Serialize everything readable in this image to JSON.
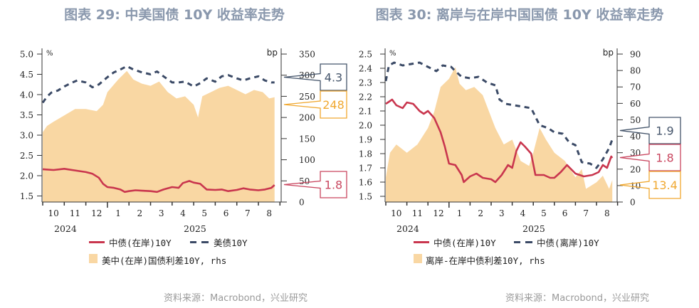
{
  "chart_data": [
    {
      "type": "line",
      "title": "图表 29: 中美国债 10Y 收益率走势",
      "left_unit": "%",
      "right_unit": "bp",
      "left_ticks": [
        "5.0",
        "4.5",
        "4.0",
        "3.5",
        "3.0",
        "2.5",
        "2.0",
        "1.5"
      ],
      "right_ticks": [
        "350",
        "300",
        "250",
        "200",
        "150",
        "100",
        "50",
        "0"
      ],
      "ylim_left": [
        1.35,
        5.0
      ],
      "ylim_right": [
        0,
        350
      ],
      "x_unit": "months since 2024-10-01",
      "xlim": [
        0,
        11
      ],
      "month_labels": [
        "10",
        "11",
        "12",
        "1",
        "2",
        "3",
        "4",
        "5",
        "6",
        "7",
        "8"
      ],
      "year_labels": [
        "2024",
        "2025"
      ],
      "series": [
        {
          "name": "中债(在岸)10Y",
          "axis": "left",
          "style": "solid",
          "color": "#c9364e",
          "x": [
            0,
            0.5,
            1,
            1.5,
            2,
            2.3,
            2.6,
            2.8,
            3,
            3.3,
            3.6,
            3.8,
            4,
            4.3,
            4.6,
            5,
            5.3,
            5.6,
            6,
            6.3,
            6.5,
            6.8,
            7,
            7.3,
            7.6,
            8,
            8.3,
            8.6,
            9,
            9.3,
            9.6,
            10,
            10.3,
            10.6,
            10.75
          ],
          "values": [
            2.16,
            2.14,
            2.17,
            2.13,
            2.09,
            2.05,
            1.95,
            1.8,
            1.72,
            1.7,
            1.66,
            1.6,
            1.62,
            1.64,
            1.63,
            1.62,
            1.6,
            1.66,
            1.72,
            1.7,
            1.82,
            1.87,
            1.83,
            1.8,
            1.66,
            1.65,
            1.66,
            1.62,
            1.65,
            1.69,
            1.66,
            1.64,
            1.66,
            1.7,
            1.77
          ]
        },
        {
          "name": "美债10Y",
          "axis": "left",
          "style": "dashed",
          "color": "#3b4a66",
          "x": [
            0,
            0.2,
            0.4,
            0.7,
            1,
            1.3,
            1.6,
            2,
            2.3,
            2.6,
            3,
            3.3,
            3.6,
            3.9,
            4.2,
            4.6,
            5,
            5.3,
            5.6,
            6,
            6.3,
            6.6,
            7,
            7.3,
            7.6,
            8,
            8.3,
            8.6,
            9,
            9.3,
            9.6,
            10,
            10.3,
            10.6,
            10.75
          ],
          "values": [
            3.8,
            3.95,
            4.05,
            4.1,
            4.2,
            4.28,
            4.35,
            4.3,
            4.18,
            4.25,
            4.43,
            4.55,
            4.62,
            4.7,
            4.62,
            4.55,
            4.5,
            4.57,
            4.45,
            4.3,
            4.3,
            4.32,
            4.2,
            4.28,
            4.4,
            4.32,
            4.45,
            4.48,
            4.4,
            4.35,
            4.4,
            4.45,
            4.35,
            4.3,
            4.3
          ]
        },
        {
          "name": "美中(在岸)国债利差10Y, rhs",
          "axis": "right",
          "style": "area",
          "color": "#f9d7a3",
          "x": [
            0,
            0.2,
            0.5,
            1,
            1.5,
            2,
            2.5,
            2.8,
            3,
            3.5,
            3.9,
            4.2,
            4.6,
            5,
            5.4,
            5.8,
            6.2,
            6.6,
            7,
            7.2,
            7.4,
            7.8,
            8.2,
            8.6,
            9,
            9.4,
            9.8,
            10.2,
            10.5,
            10.75
          ],
          "values": [
            165,
            180,
            190,
            205,
            220,
            220,
            215,
            230,
            260,
            290,
            310,
            290,
            280,
            275,
            285,
            260,
            245,
            250,
            230,
            200,
            250,
            260,
            270,
            275,
            265,
            255,
            265,
            260,
            245,
            248
          ]
        }
      ],
      "callouts": [
        {
          "value": "4.3",
          "color": "#44546a"
        },
        {
          "value": "248",
          "color": "#f0a830"
        },
        {
          "value": "1.8",
          "color": "#c9465f"
        }
      ],
      "legend": [
        "中债(在岸)10Y",
        "美债10Y",
        "美中(在岸)国债利差10Y, rhs"
      ],
      "source": "资料来源：Macrobond，兴业研究"
    },
    {
      "type": "line",
      "title": "图表 30: 离岸与在岸中国国债 10Y 收益率走势",
      "left_unit": "%",
      "right_unit": "bp",
      "left_ticks": [
        "2.5",
        "2.4",
        "2.3",
        "2.2",
        "2.1",
        "2.0",
        "1.9",
        "1.8",
        "1.7",
        "1.6",
        "1.5"
      ],
      "right_ticks": [
        "90",
        "80",
        "70",
        "60",
        "50",
        "40",
        "30",
        "20",
        "10",
        "0"
      ],
      "ylim_left": [
        1.46,
        2.5
      ],
      "ylim_right": [
        0,
        90
      ],
      "x_unit": "months since 2024-10-01",
      "xlim": [
        0,
        11
      ],
      "month_labels": [
        "10",
        "11",
        "12",
        "1",
        "2",
        "3",
        "4",
        "5",
        "6",
        "7",
        "8"
      ],
      "year_labels": [
        "2024",
        "2025"
      ],
      "series": [
        {
          "name": "中债(在岸)10Y",
          "axis": "left",
          "style": "solid",
          "color": "#c9364e",
          "x": [
            0,
            0.3,
            0.5,
            0.8,
            1,
            1.3,
            1.6,
            1.8,
            2,
            2.3,
            2.6,
            2.8,
            3,
            3.3,
            3.6,
            3.7,
            4,
            4.3,
            4.6,
            5,
            5.2,
            5.5,
            5.8,
            6,
            6.2,
            6.4,
            6.6,
            6.9,
            7.1,
            7.5,
            7.8,
            8,
            8.3,
            8.6,
            9,
            9.4,
            9.8,
            10.1,
            10.3,
            10.5,
            10.7,
            10.75
          ],
          "values": [
            2.15,
            2.18,
            2.14,
            2.12,
            2.16,
            2.15,
            2.1,
            2.08,
            2.1,
            2.05,
            1.95,
            1.85,
            1.73,
            1.72,
            1.65,
            1.6,
            1.64,
            1.66,
            1.63,
            1.62,
            1.6,
            1.65,
            1.72,
            1.7,
            1.82,
            1.88,
            1.85,
            1.8,
            1.65,
            1.65,
            1.63,
            1.63,
            1.67,
            1.72,
            1.66,
            1.64,
            1.65,
            1.67,
            1.72,
            1.7,
            1.78,
            1.77
          ]
        },
        {
          "name": "中债(离岸)10Y",
          "axis": "left",
          "style": "dashed",
          "color": "#3b4a66",
          "x": [
            0,
            0.15,
            0.4,
            0.8,
            1.2,
            1.6,
            2,
            2.4,
            2.7,
            3.1,
            3.3,
            3.6,
            4,
            4.4,
            4.8,
            5.2,
            5.4,
            5.7,
            6.1,
            6.5,
            6.9,
            7.3,
            7.7,
            8,
            8.4,
            8.7,
            9,
            9.3,
            9.7,
            10,
            10.3,
            10.6,
            10.75
          ],
          "values": [
            2.31,
            2.42,
            2.44,
            2.42,
            2.43,
            2.44,
            2.41,
            2.38,
            2.42,
            2.41,
            2.38,
            2.34,
            2.33,
            2.34,
            2.3,
            2.28,
            2.18,
            2.15,
            2.14,
            2.13,
            2.12,
            2.0,
            1.98,
            1.95,
            1.94,
            1.88,
            1.86,
            1.74,
            1.73,
            1.7,
            1.76,
            1.84,
            1.9
          ]
        },
        {
          "name": "离岸-在岸中债利差10Y, rhs",
          "axis": "right",
          "style": "area",
          "color": "#f9d7a3",
          "x": [
            0,
            0.2,
            0.5,
            1,
            1.5,
            2,
            2.3,
            2.6,
            3,
            3.3,
            3.5,
            3.8,
            4.2,
            4.6,
            5.2,
            5.6,
            6,
            6.4,
            6.8,
            7,
            7.3,
            7.6,
            8,
            8.5,
            9,
            9.3,
            9.5,
            10,
            10.3,
            10.6,
            10.75
          ],
          "values": [
            15,
            30,
            35,
            30,
            35,
            45,
            55,
            70,
            75,
            82,
            72,
            68,
            70,
            65,
            45,
            35,
            38,
            25,
            22,
            30,
            45,
            38,
            30,
            25,
            15,
            20,
            8,
            12,
            16,
            8,
            13.4
          ]
        }
      ],
      "callouts": [
        {
          "value": "1.9",
          "color": "#44546a"
        },
        {
          "value": "1.8",
          "color": "#c9465f"
        },
        {
          "value": "13.4",
          "color": "#f0a830"
        }
      ],
      "legend": [
        "中债(在岸)10Y",
        "中债(离岸)10Y",
        "离岸-在岸中债利差10Y, rhs"
      ],
      "source": "资料来源：Macrobond，兴业研究"
    }
  ]
}
